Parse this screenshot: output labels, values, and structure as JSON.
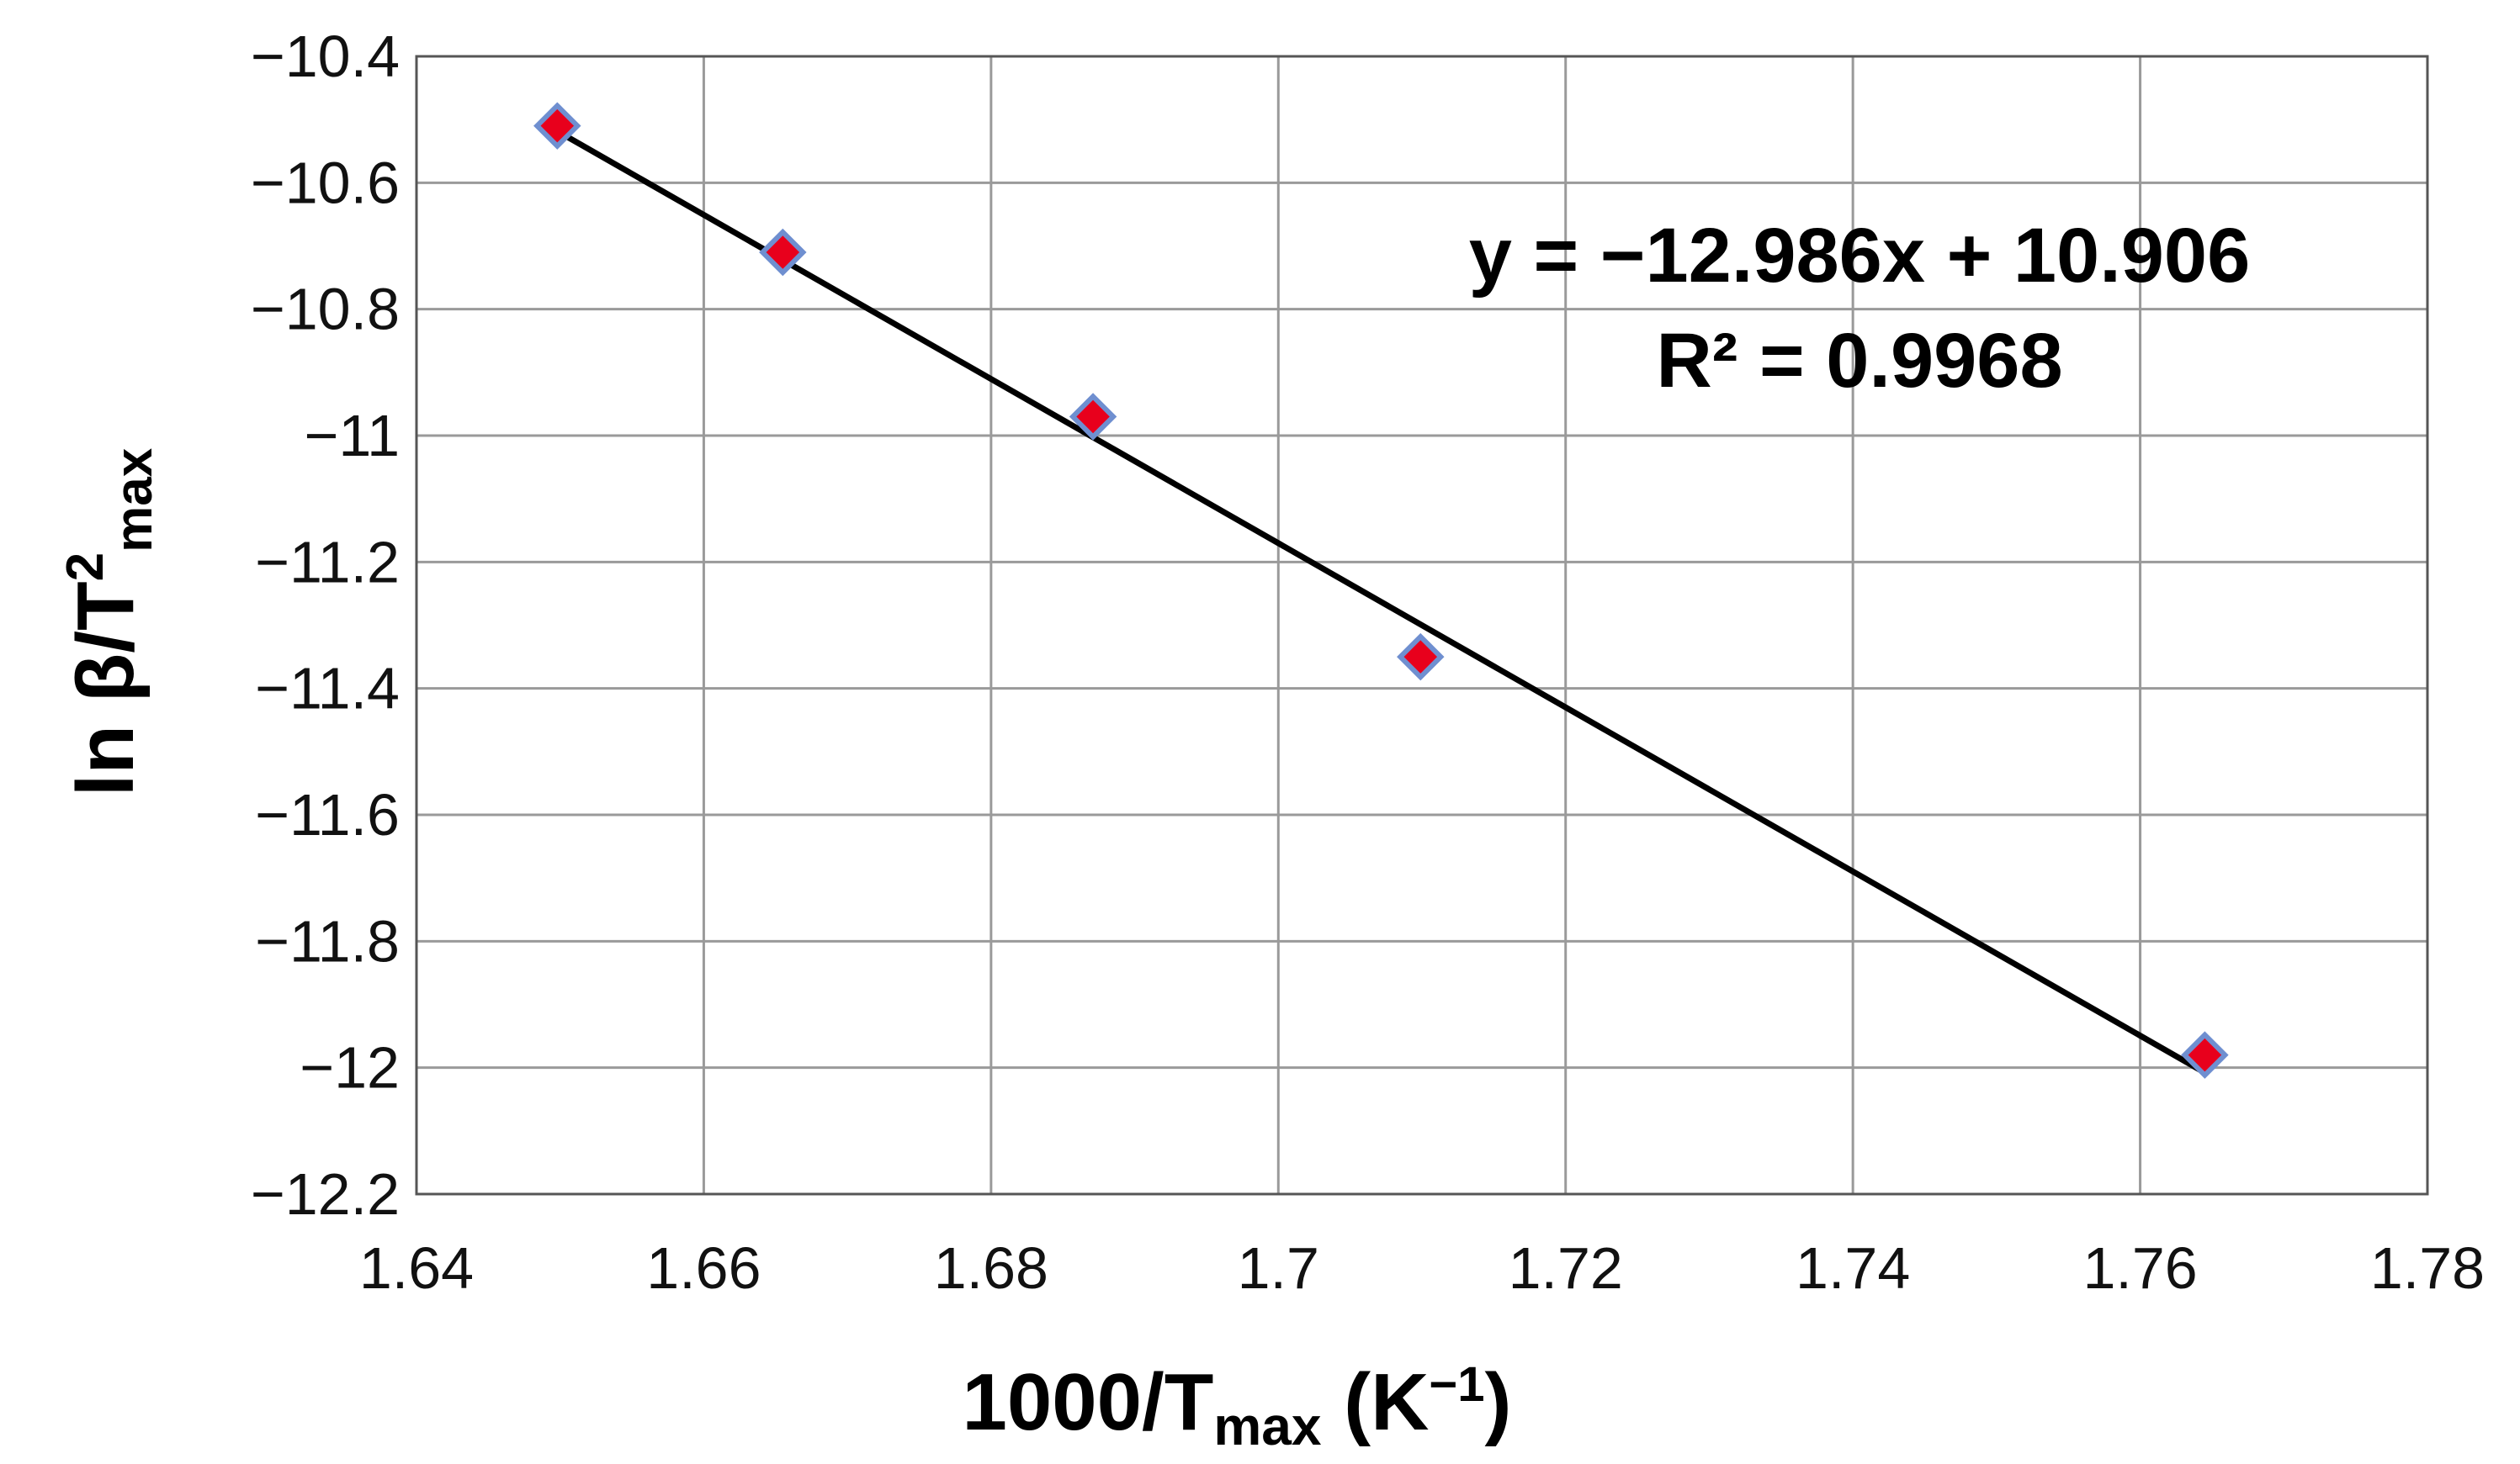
{
  "chart_data": {
    "type": "scatter",
    "x": [
      1.6498,
      1.6655,
      1.6871,
      1.7099,
      1.7645
    ],
    "y": [
      -10.51,
      -10.71,
      -10.97,
      -11.35,
      -11.98
    ],
    "xlim": [
      1.64,
      1.78
    ],
    "ylim": [
      -12.2,
      -10.4
    ],
    "xticks": [
      "1.64",
      "1.66",
      "1.68",
      "1.7",
      "1.72",
      "1.74",
      "1.76",
      "1.78"
    ],
    "yticks": [
      "−10.4",
      "−10.6",
      "−10.8",
      "−11",
      "−11.2",
      "−11.4",
      "−11.6",
      "−11.8",
      "−12",
      "−12.2"
    ],
    "xlabel": {
      "main": "1000/T",
      "sub": "max",
      "units": " (K",
      "sup": "−1",
      "close": ")"
    },
    "ylabel": {
      "main": "ln β/T",
      "sup": "2",
      "sub": "max"
    },
    "trendline": {
      "slope": -12.986,
      "intercept": 10.906
    },
    "annotations": {
      "equation": "y = −12.986x + 10.906",
      "r2": "R² = 0.9968"
    },
    "grid": true,
    "marker": {
      "shape": "diamond",
      "fill": "#e8001c",
      "stroke": "#6f8fd0"
    },
    "line_color": "#000000"
  }
}
